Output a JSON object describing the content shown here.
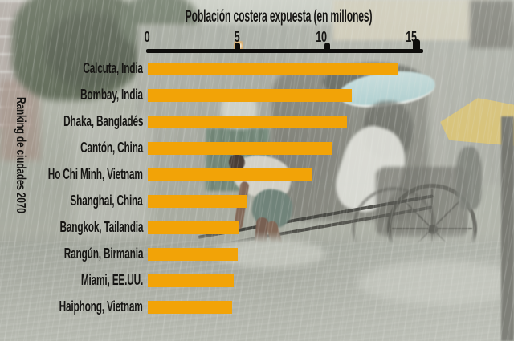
{
  "chart_data": {
    "type": "bar",
    "orientation": "horizontal",
    "title": "Población costera expuesta (en millones)",
    "ylabel": "Ranking de ciudades 2070",
    "categories": [
      "Calcuta, India",
      "Bombay, India",
      "Dhaka, Bangladés",
      "Cantón, China",
      "Ho Chi Minh, Vietnam",
      "Shanghai, China",
      "Bangkok, Tailandia",
      "Rangún, Birmania",
      "Miami, EE.UU.",
      "Haiphong, Vietnam"
    ],
    "values": [
      14.0,
      11.4,
      11.1,
      10.3,
      9.2,
      5.5,
      5.1,
      5.0,
      4.8,
      4.7
    ],
    "xlim": [
      0,
      15
    ],
    "x_ticks": [
      "0",
      "5",
      "10",
      "15"
    ],
    "x_tick_values": [
      0,
      5,
      10,
      15
    ],
    "grid": false,
    "legend": null,
    "bar_color": "#F2A307",
    "text_color": "#161513",
    "axis_color": "#0e0d0b"
  }
}
